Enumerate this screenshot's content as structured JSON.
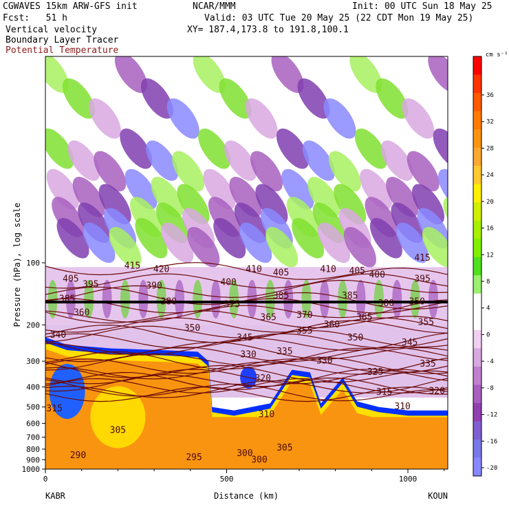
{
  "header": {
    "model": "CGWAVES 15km ARW-GFS init",
    "org": "NCAR/MMM",
    "init": "Init: 00 UTC Sun 18 May 25",
    "fcst": "Fcst:   51 h",
    "valid": "Valid: 03 UTC Tue 20 May 25 (22 CDT Mon 19 May 25)",
    "field1": "Vertical velocity",
    "field2": "Boundary Layer Tracer",
    "field3": "Potential Temperature",
    "xy": "XY= 187.4,173.8 to 191.8,100.1"
  },
  "chart_data": {
    "type": "heatmap",
    "title": "Vertical velocity",
    "xlabel": "Distance (km)",
    "ylabel": "Pressure (hPa), log scale",
    "x_ticks": [
      0,
      500,
      1000
    ],
    "xlim": [
      0,
      1110
    ],
    "y_ticks": [
      100,
      200,
      300,
      400,
      500,
      600,
      700,
      800,
      900,
      1000
    ],
    "y_scale": "log",
    "ylim": [
      1000,
      10
    ],
    "left_endpoint": "KABR",
    "right_endpoint": "KOUN",
    "colorbar": {
      "unit": "cm s⁻¹",
      "labels": [
        36,
        32,
        28,
        24,
        20,
        16,
        12,
        8,
        4,
        0,
        -4,
        -8,
        -12,
        -16,
        -20
      ],
      "colors": [
        "#ff0000",
        "#ff3300",
        "#ff5a00",
        "#ff7a00",
        "#f99410",
        "#f9a830",
        "#ffc830",
        "#fff000",
        "#d0f000",
        "#a8f000",
        "#80f000",
        "#50e020",
        "#9cf070",
        "#ffffff",
        "#ffffff",
        "#f0d0f0",
        "#d8a8e0",
        "#c080d0",
        "#a860c0",
        "#9040b0",
        "#8060d0",
        "#7878e8",
        "#8888ff"
      ],
      "placement": "right"
    },
    "theta_labels": [
      {
        "x": 70,
        "p": 120,
        "v": "405"
      },
      {
        "x": 125,
        "p": 128,
        "v": "395"
      },
      {
        "x": 60,
        "p": 150,
        "v": "385"
      },
      {
        "x": 100,
        "p": 175,
        "v": "360"
      },
      {
        "x": 35,
        "p": 225,
        "v": "340"
      },
      {
        "x": 25,
        "p": 510,
        "v": "315"
      },
      {
        "x": 240,
        "p": 104,
        "v": "415"
      },
      {
        "x": 320,
        "p": 108,
        "v": "420"
      },
      {
        "x": 300,
        "p": 130,
        "v": "390"
      },
      {
        "x": 340,
        "p": 155,
        "v": "380"
      },
      {
        "x": 505,
        "p": 125,
        "v": "400"
      },
      {
        "x": 575,
        "p": 108,
        "v": "410"
      },
      {
        "x": 515,
        "p": 160,
        "v": "375"
      },
      {
        "x": 405,
        "p": 208,
        "v": "350"
      },
      {
        "x": 550,
        "p": 232,
        "v": "345"
      },
      {
        "x": 560,
        "p": 280,
        "v": "330"
      },
      {
        "x": 650,
        "p": 112,
        "v": "405"
      },
      {
        "x": 650,
        "p": 145,
        "v": "385"
      },
      {
        "x": 715,
        "p": 180,
        "v": "370"
      },
      {
        "x": 615,
        "p": 185,
        "v": "365"
      },
      {
        "x": 715,
        "p": 215,
        "v": "355"
      },
      {
        "x": 660,
        "p": 270,
        "v": "335"
      },
      {
        "x": 600,
        "p": 365,
        "v": "320"
      },
      {
        "x": 780,
        "p": 108,
        "v": "410"
      },
      {
        "x": 860,
        "p": 110,
        "v": "405"
      },
      {
        "x": 840,
        "p": 145,
        "v": "385"
      },
      {
        "x": 790,
        "p": 200,
        "v": "360"
      },
      {
        "x": 770,
        "p": 300,
        "v": "330"
      },
      {
        "x": 915,
        "p": 115,
        "v": "400"
      },
      {
        "x": 940,
        "p": 158,
        "v": "380"
      },
      {
        "x": 880,
        "p": 185,
        "v": "365"
      },
      {
        "x": 855,
        "p": 232,
        "v": "350"
      },
      {
        "x": 910,
        "p": 340,
        "v": "325"
      },
      {
        "x": 1040,
        "p": 95,
        "v": "415"
      },
      {
        "x": 1040,
        "p": 120,
        "v": "395"
      },
      {
        "x": 1025,
        "p": 155,
        "v": "350"
      },
      {
        "x": 1050,
        "p": 195,
        "v": "355"
      },
      {
        "x": 1005,
        "p": 245,
        "v": "345"
      },
      {
        "x": 1055,
        "p": 310,
        "v": "335"
      },
      {
        "x": 935,
        "p": 425,
        "v": "315"
      },
      {
        "x": 1080,
        "p": 420,
        "v": "320"
      },
      {
        "x": 985,
        "p": 500,
        "v": "310"
      },
      {
        "x": 610,
        "p": 545,
        "v": "310"
      },
      {
        "x": 200,
        "p": 650,
        "v": "305"
      },
      {
        "x": 660,
        "p": 790,
        "v": "305"
      },
      {
        "x": 550,
        "p": 840,
        "v": "300"
      },
      {
        "x": 590,
        "p": 905,
        "v": "300"
      },
      {
        "x": 410,
        "p": 880,
        "v": "295"
      },
      {
        "x": 90,
        "p": 860,
        "v": "290"
      }
    ]
  }
}
